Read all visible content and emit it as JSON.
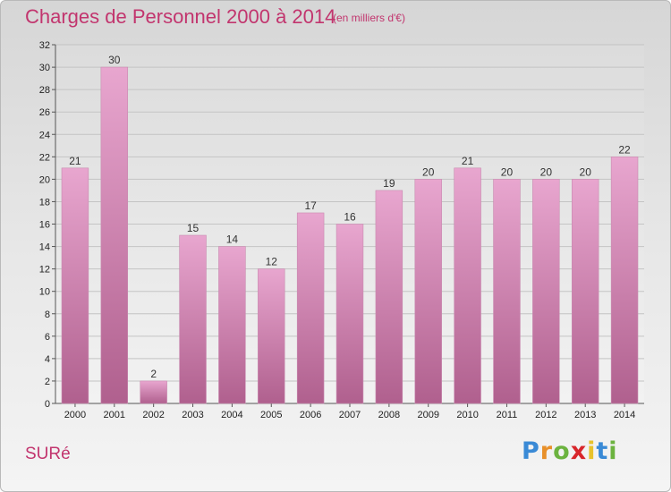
{
  "header": {
    "title": "Charges de Personnel 2000 à 2014",
    "subtitle": "(en milliers d'€)"
  },
  "footer": {
    "commune": "SURé",
    "logo": {
      "letters": [
        "P",
        "r",
        "o",
        "x",
        "i",
        "t",
        "i"
      ],
      "colors": [
        "#3a8ad6",
        "#e8902a",
        "#6cb33f",
        "#d8262b",
        "#e8c22a",
        "#3a8ad6",
        "#6cb33f"
      ]
    }
  },
  "chart_data": {
    "type": "bar",
    "categories": [
      "2000",
      "2001",
      "2002",
      "2003",
      "2004",
      "2005",
      "2006",
      "2007",
      "2008",
      "2009",
      "2010",
      "2011",
      "2012",
      "2013",
      "2014"
    ],
    "values": [
      21,
      30,
      2,
      15,
      14,
      12,
      17,
      16,
      19,
      20,
      21,
      20,
      20,
      20,
      22
    ],
    "ylim": [
      0,
      32
    ],
    "yticks": [
      0,
      2,
      4,
      6,
      8,
      10,
      12,
      14,
      16,
      18,
      20,
      22,
      24,
      26,
      28,
      30,
      32
    ],
    "grid": true,
    "bar_color_top": "#e8a6cf",
    "bar_color_bottom": "#b0608e"
  }
}
